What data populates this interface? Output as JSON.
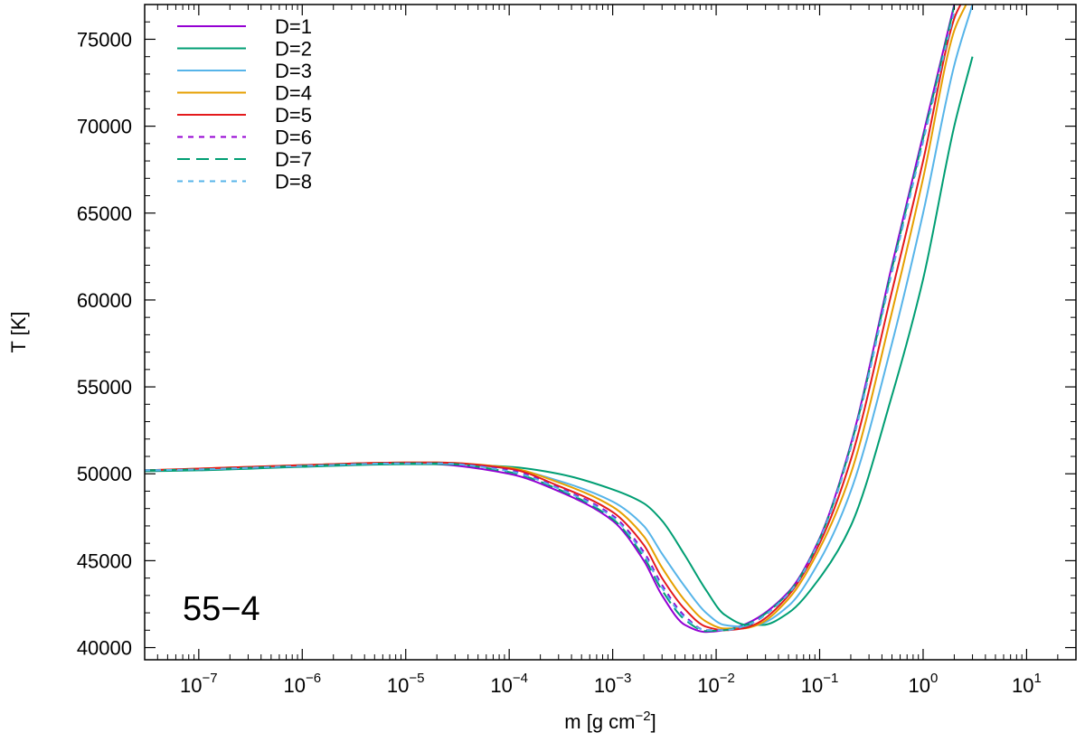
{
  "chart_data": {
    "type": "line",
    "title": "",
    "xlabel": "m [g cm",
    "xlabel_sup": "−2",
    "xlabel_end": "]",
    "ylabel": "T [K]",
    "x_scale": "log",
    "xlim": [
      3e-08,
      30
    ],
    "ylim": [
      39300,
      77000
    ],
    "grid": false,
    "legend_position": "top-left",
    "annotation": "55−4",
    "x_ticks": [
      {
        "value": 1e-07,
        "base": "10",
        "exp": "−7"
      },
      {
        "value": 1e-06,
        "base": "10",
        "exp": "−6"
      },
      {
        "value": 1e-05,
        "base": "10",
        "exp": "−5"
      },
      {
        "value": 0.0001,
        "base": "10",
        "exp": "−4"
      },
      {
        "value": 0.001,
        "base": "10",
        "exp": "−3"
      },
      {
        "value": 0.01,
        "base": "10",
        "exp": "−2"
      },
      {
        "value": 0.1,
        "base": "10",
        "exp": "−1"
      },
      {
        "value": 1,
        "base": "10",
        "exp": "0"
      },
      {
        "value": 10,
        "base": "10",
        "exp": "1"
      }
    ],
    "y_ticks": [
      {
        "value": 40000,
        "label": "40000"
      },
      {
        "value": 45000,
        "label": "45000"
      },
      {
        "value": 50000,
        "label": "50000"
      },
      {
        "value": 55000,
        "label": "55000"
      },
      {
        "value": 60000,
        "label": "60000"
      },
      {
        "value": 65000,
        "label": "65000"
      },
      {
        "value": 70000,
        "label": "70000"
      },
      {
        "value": 75000,
        "label": "75000"
      }
    ],
    "series": [
      {
        "name": "D=1",
        "color": "#9400d3",
        "dash": "solid",
        "x": [
          3e-08,
          1e-07,
          1e-06,
          1e-05,
          2e-05,
          0.0001,
          0.0003,
          0.001,
          0.002,
          0.003,
          0.005,
          0.008,
          0.012,
          0.02,
          0.05,
          0.1,
          0.2,
          0.5,
          1,
          2
        ],
        "y": [
          50200,
          50250,
          50450,
          50600,
          50550,
          50000,
          49000,
          47300,
          45000,
          43000,
          41300,
          40900,
          41000,
          41400,
          43200,
          46300,
          51700,
          62000,
          69500,
          77000
        ]
      },
      {
        "name": "D=2",
        "color": "#009e73",
        "dash": "solid",
        "x": [
          3e-08,
          1e-07,
          1e-06,
          1e-05,
          2e-05,
          0.0001,
          0.0003,
          0.001,
          0.002,
          0.003,
          0.005,
          0.008,
          0.012,
          0.02,
          0.028,
          0.05,
          0.1,
          0.2,
          0.5,
          1,
          2,
          3
        ],
        "y": [
          50150,
          50200,
          50400,
          50550,
          50550,
          50400,
          50000,
          49100,
          48300,
          47300,
          45300,
          43300,
          41900,
          41300,
          41300,
          42000,
          44000,
          47000,
          54500,
          61200,
          70000,
          74000
        ]
      },
      {
        "name": "D=3",
        "color": "#56b4e9",
        "dash": "solid",
        "x": [
          3e-08,
          1e-07,
          1e-06,
          1e-05,
          2e-05,
          0.0001,
          0.0003,
          0.001,
          0.002,
          0.003,
          0.005,
          0.008,
          0.012,
          0.018,
          0.025,
          0.05,
          0.1,
          0.2,
          0.5,
          1,
          2,
          3
        ],
        "y": [
          50200,
          50250,
          50450,
          50600,
          50600,
          50300,
          49600,
          48400,
          47000,
          45400,
          43500,
          42000,
          41300,
          41200,
          41300,
          42400,
          45000,
          49000,
          57500,
          65000,
          73500,
          77000
        ]
      },
      {
        "name": "D=4",
        "color": "#e69f00",
        "dash": "solid",
        "x": [
          3e-08,
          1e-07,
          1e-06,
          1e-05,
          2e-05,
          0.0001,
          0.0003,
          0.001,
          0.002,
          0.003,
          0.005,
          0.008,
          0.012,
          0.018,
          0.025,
          0.05,
          0.1,
          0.2,
          0.5,
          1,
          2,
          2.6
        ],
        "y": [
          50200,
          50300,
          50500,
          50650,
          50650,
          50350,
          49500,
          48100,
          46400,
          44600,
          42700,
          41500,
          41100,
          41100,
          41300,
          42800,
          45700,
          50000,
          59300,
          67000,
          75500,
          77000
        ]
      },
      {
        "name": "D=5",
        "color": "#e41a1c",
        "dash": "solid",
        "x": [
          3e-08,
          1e-07,
          1e-06,
          1e-05,
          2e-05,
          0.0001,
          0.0003,
          0.001,
          0.002,
          0.003,
          0.005,
          0.008,
          0.012,
          0.018,
          0.025,
          0.05,
          0.1,
          0.2,
          0.5,
          1,
          2,
          2.3
        ],
        "y": [
          50200,
          50300,
          50500,
          50650,
          50650,
          50300,
          49300,
          47800,
          45900,
          44000,
          42200,
          41200,
          41000,
          41100,
          41400,
          43000,
          46000,
          50800,
          60500,
          68000,
          76200,
          77000
        ]
      },
      {
        "name": "D=6",
        "color": "#9400d3",
        "dash": "short",
        "x": [
          3e-08,
          1e-07,
          1e-06,
          1e-05,
          2e-05,
          0.0001,
          0.0003,
          0.001,
          0.002,
          0.003,
          0.005,
          0.008,
          0.012,
          0.02,
          0.05,
          0.1,
          0.2,
          0.5,
          1,
          2
        ],
        "y": [
          50200,
          50250,
          50450,
          50600,
          50600,
          50200,
          49200,
          47600,
          45500,
          43600,
          41800,
          41000,
          41000,
          41300,
          43100,
          46200,
          51500,
          61700,
          69200,
          76800
        ]
      },
      {
        "name": "D=7",
        "color": "#009e73",
        "dash": "long",
        "x": [
          3e-08,
          1e-07,
          1e-06,
          1e-05,
          2e-05,
          0.0001,
          0.0003,
          0.001,
          0.002,
          0.003,
          0.005,
          0.008,
          0.012,
          0.02,
          0.05,
          0.1,
          0.2,
          0.5,
          1,
          2
        ],
        "y": [
          50200,
          50250,
          50450,
          50600,
          50600,
          50100,
          49100,
          47400,
          45200,
          43300,
          41600,
          40950,
          41000,
          41350,
          43150,
          46250,
          51600,
          61800,
          69300,
          76900
        ]
      },
      {
        "name": "D=8",
        "color": "#56b4e9",
        "dash": "short",
        "x": [
          3e-08,
          1e-07,
          1e-06,
          1e-05,
          2e-05,
          0.0001,
          0.0003,
          0.001,
          0.002,
          0.003,
          0.005,
          0.008,
          0.012,
          0.02,
          0.05,
          0.1,
          0.2,
          0.5,
          1,
          2
        ],
        "y": [
          50200,
          50250,
          50450,
          50600,
          50600,
          50150,
          49150,
          47500,
          45350,
          43450,
          41700,
          41000,
          41000,
          41300,
          43100,
          46200,
          51500,
          61600,
          69100,
          76600
        ]
      }
    ]
  }
}
